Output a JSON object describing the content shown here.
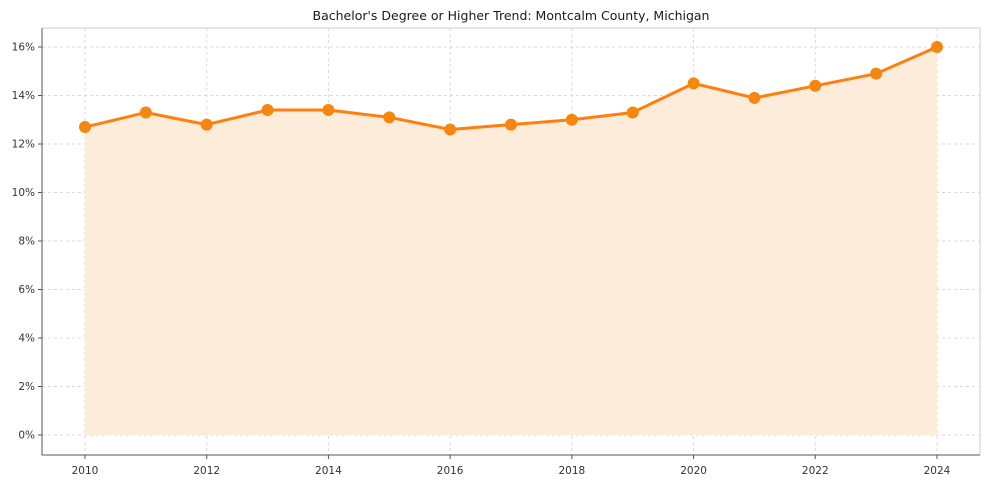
{
  "chart_data": {
    "type": "area",
    "title": "Bachelor's Degree or Higher Trend: Montcalm County, Michigan",
    "xlabel": "",
    "ylabel": "",
    "x": [
      2010,
      2011,
      2012,
      2013,
      2014,
      2015,
      2016,
      2017,
      2018,
      2019,
      2020,
      2021,
      2022,
      2023,
      2024
    ],
    "values": [
      12.7,
      13.3,
      12.8,
      13.4,
      13.4,
      13.1,
      12.6,
      12.8,
      13.0,
      13.3,
      14.5,
      13.9,
      14.4,
      14.9,
      16.0
    ],
    "ylim": [
      0,
      16
    ],
    "ytick_step": 2,
    "ytick_suffix": "%",
    "xtick_step": 2,
    "grid": true,
    "grid_style": "dashed",
    "legend": "none",
    "colors": {
      "line": "#ff7f0e",
      "fill": "#fdecd9",
      "marker": "#f5870f",
      "grid": "#d9d9d9",
      "spine_dark": "#555555",
      "spine_light": "#cccccc",
      "tick_text": "#333333",
      "background": "#ffffff"
    }
  }
}
